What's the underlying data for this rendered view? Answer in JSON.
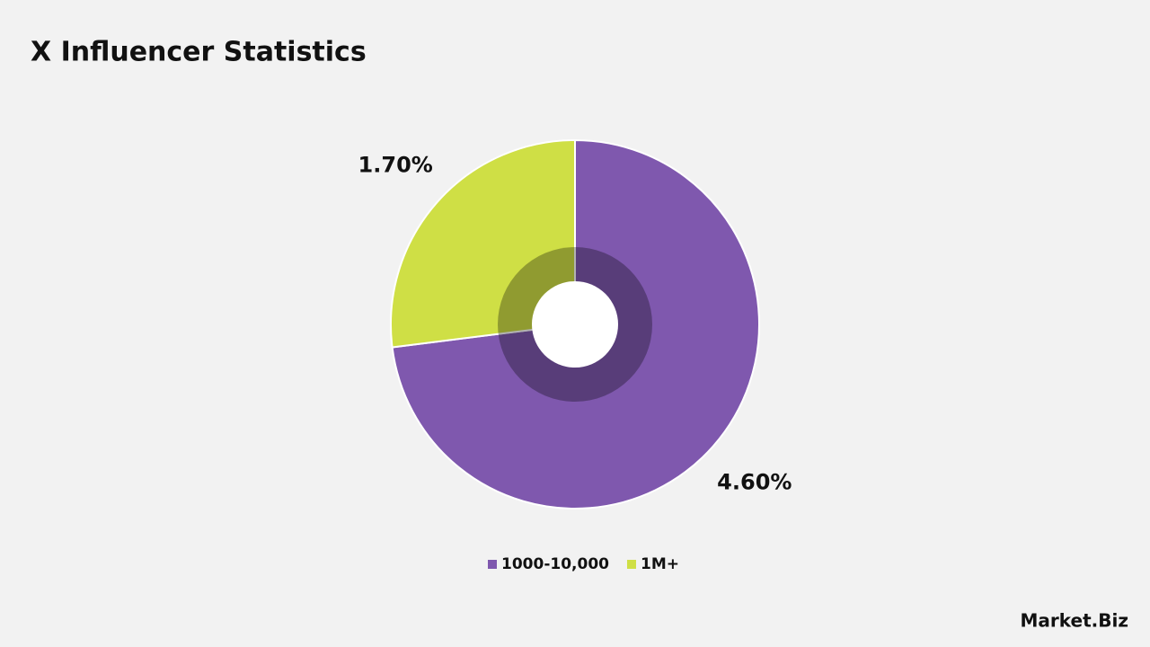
{
  "chart_data": {
    "type": "pie",
    "title": "X Influencer Statistics",
    "categories": [
      "1000-10,000",
      "1M+"
    ],
    "values": [
      4.6,
      1.7
    ],
    "value_labels": [
      "4.60%",
      "1.70%"
    ],
    "colors": [
      "#7f58ae",
      "#cfdf45"
    ],
    "legend": "bottom",
    "watermark": "Market.Biz"
  }
}
